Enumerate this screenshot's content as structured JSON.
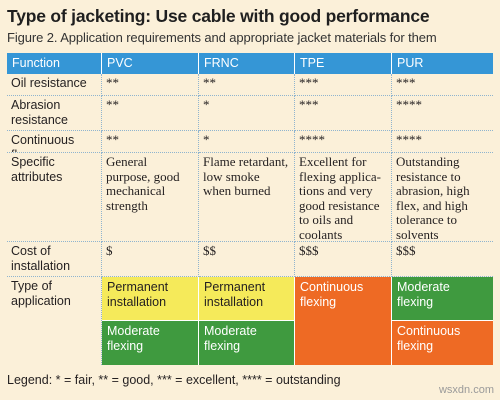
{
  "title": "Type of jacketing: Use cable with good performance",
  "subtitle": "Figure 2. Application requirements and appropriate jacket materials for them",
  "columns": [
    "Function",
    "PVC",
    "FRNC",
    "TPE",
    "PUR"
  ],
  "rows": [
    {
      "label": "Oil resistance",
      "values": [
        "**",
        "**",
        "***",
        "***"
      ]
    },
    {
      "label": "Abrasion resistance",
      "values": [
        "**",
        "*",
        "***",
        "****"
      ]
    },
    {
      "label": "Continuous flex",
      "values": [
        "**",
        "*",
        "****",
        "****"
      ]
    },
    {
      "label": "Specific attributes",
      "values": [
        "General purpose, good mechanical strength",
        "Flame retardant, low smoke when burned",
        "Excellent for flexing applica-tions and very good resistance to oils and coolants",
        "Outstanding resistance to abrasion, high flex, and high tolerance to solvents"
      ]
    },
    {
      "label": "Cost of installation",
      "values": [
        "$",
        "$$",
        "$$$",
        "$$$"
      ]
    }
  ],
  "application": {
    "label": "Type of application",
    "pvc": [
      "Permanent installation",
      "Moderate flexing"
    ],
    "frnc": [
      "Permanent installation",
      "Moderate flexing"
    ],
    "tpe": "Continuous flexing",
    "pur": [
      "Moderate flexing",
      "Continuous flexing"
    ]
  },
  "legend": "Legend: * = fair, ** = good, *** = excellent, **** = outstanding",
  "watermark": "wsxdn.com",
  "colors": {
    "header": "#3596d6",
    "permanent": "#f5ea5a",
    "moderate": "#3f9a3f",
    "continuous": "#ee6a24",
    "background": "#fbf0d9"
  }
}
